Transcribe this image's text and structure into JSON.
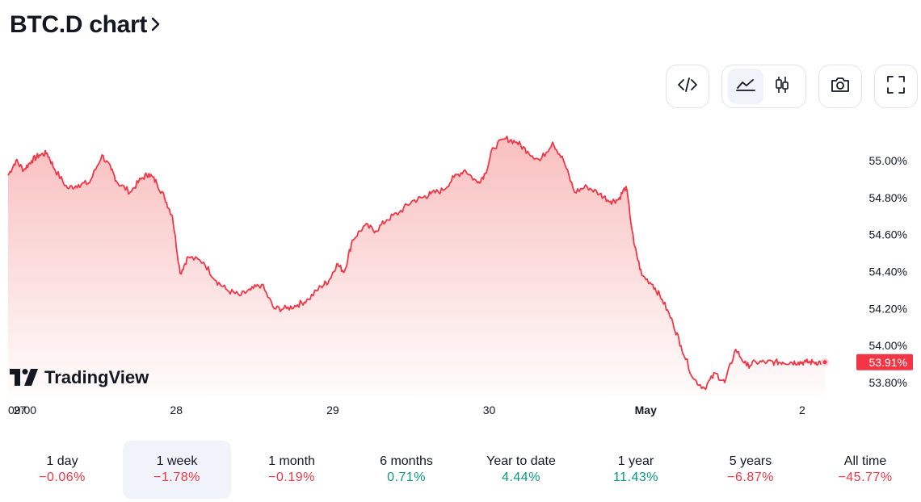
{
  "header": {
    "title": "BTC.D chart",
    "title_chevron_icon": "chevron-right-icon"
  },
  "toolbar": {
    "embed_icon": "code-icon",
    "chart_style_options": [
      {
        "icon": "area-chart-icon",
        "active": true
      },
      {
        "icon": "candlestick-icon",
        "active": false
      }
    ],
    "snapshot_icon": "camera-icon",
    "fullscreen_icon": "fullscreen-icon"
  },
  "watermark": {
    "text": "TradingView",
    "logo_icon": "tradingview-logo-icon"
  },
  "colors": {
    "line": "#f23645",
    "fill_top": "#f7a9a9",
    "negative": "#f23645",
    "positive": "#089981",
    "active_tab_bg": "#f0f3fa",
    "text": "#131722"
  },
  "chart_data": {
    "type": "area",
    "symbol": "BTC.D",
    "y_unit": "%",
    "ylim": [
      53.75,
      55.2
    ],
    "y_ticks": [
      "55.00%",
      "54.80%",
      "54.60%",
      "54.40%",
      "54.20%",
      "54.00%",
      "53.80%"
    ],
    "y_tick_values": [
      55.0,
      54.8,
      54.6,
      54.4,
      54.2,
      54.0,
      53.8
    ],
    "x_ticks": [
      {
        "label": "09:00",
        "x": 0,
        "bold": false
      },
      {
        "label": "27",
        "x": 0.075,
        "bold": false
      },
      {
        "label": "28",
        "x": 1.075,
        "bold": false
      },
      {
        "label": "29",
        "x": 2.075,
        "bold": false
      },
      {
        "label": "30",
        "x": 3.075,
        "bold": false
      },
      {
        "label": "May",
        "x": 4.075,
        "bold": true
      },
      {
        "label": "2",
        "x": 5.075,
        "bold": false
      }
    ],
    "x_unit": "days since 26 Apr 09:00",
    "current_value": 53.91,
    "current_label": "53.91%",
    "grid": false,
    "series": [
      {
        "x": [
          0,
          0.05,
          0.1,
          0.15,
          0.2,
          0.25,
          0.3,
          0.38,
          0.45,
          0.52,
          0.6,
          0.66,
          0.7,
          0.78,
          0.85,
          0.9,
          0.95,
          1.0,
          1.05,
          1.1,
          1.15,
          1.25,
          1.33,
          1.4,
          1.48,
          1.55,
          1.62,
          1.7,
          1.78,
          1.85,
          1.92,
          2.0,
          2.05,
          2.1,
          2.15,
          2.2,
          2.28,
          2.35,
          2.42,
          2.5,
          2.58,
          2.65,
          2.7,
          2.78,
          2.85,
          2.92,
          3.0,
          3.05,
          3.1,
          3.18,
          3.25,
          3.32,
          3.4,
          3.48,
          3.55,
          3.62,
          3.7,
          3.78,
          3.85,
          3.9,
          3.95,
          4.0,
          4.05,
          4.12,
          4.18,
          4.25,
          4.3,
          4.38,
          4.45,
          4.52,
          4.58,
          4.65,
          4.72,
          4.78,
          4.85,
          4.9,
          4.95,
          5.0,
          5.05,
          5.1,
          5.15,
          5.2,
          5.25,
          5.3,
          5.38
        ],
        "values": [
          54.92,
          55.0,
          54.95,
          55.0,
          55.03,
          55.04,
          54.95,
          54.85,
          54.87,
          54.88,
          55.03,
          54.95,
          54.88,
          54.83,
          54.9,
          54.93,
          54.88,
          54.8,
          54.7,
          54.39,
          54.48,
          54.45,
          54.35,
          54.3,
          54.27,
          54.3,
          54.33,
          54.2,
          54.2,
          54.22,
          54.25,
          54.32,
          54.35,
          54.44,
          54.4,
          54.57,
          54.65,
          54.62,
          54.68,
          54.72,
          54.78,
          54.8,
          54.82,
          54.84,
          54.91,
          54.95,
          54.88,
          54.93,
          55.07,
          55.12,
          55.1,
          55.05,
          55.0,
          55.1,
          55.0,
          54.83,
          54.86,
          54.82,
          54.78,
          54.79,
          54.86,
          54.55,
          54.38,
          54.33,
          54.25,
          54.12,
          54.0,
          53.82,
          53.77,
          53.85,
          53.8,
          53.98,
          53.89,
          53.91,
          53.91,
          53.91,
          53.91,
          53.91,
          53.91,
          53.91,
          53.91,
          53.91,
          53.91,
          53.91,
          53.91
        ]
      }
    ]
  },
  "ranges": [
    {
      "label": "1 day",
      "change": "−0.06%",
      "direction": "down",
      "active": false
    },
    {
      "label": "1 week",
      "change": "−1.78%",
      "direction": "down",
      "active": true
    },
    {
      "label": "1 month",
      "change": "−0.19%",
      "direction": "down",
      "active": false
    },
    {
      "label": "6 months",
      "change": "0.71%",
      "direction": "up",
      "active": false
    },
    {
      "label": "Year to date",
      "change": "4.44%",
      "direction": "up",
      "active": false
    },
    {
      "label": "1 year",
      "change": "11.43%",
      "direction": "up",
      "active": false
    },
    {
      "label": "5 years",
      "change": "−6.87%",
      "direction": "down",
      "active": false
    },
    {
      "label": "All time",
      "change": "−45.77%",
      "direction": "down",
      "active": false
    }
  ]
}
